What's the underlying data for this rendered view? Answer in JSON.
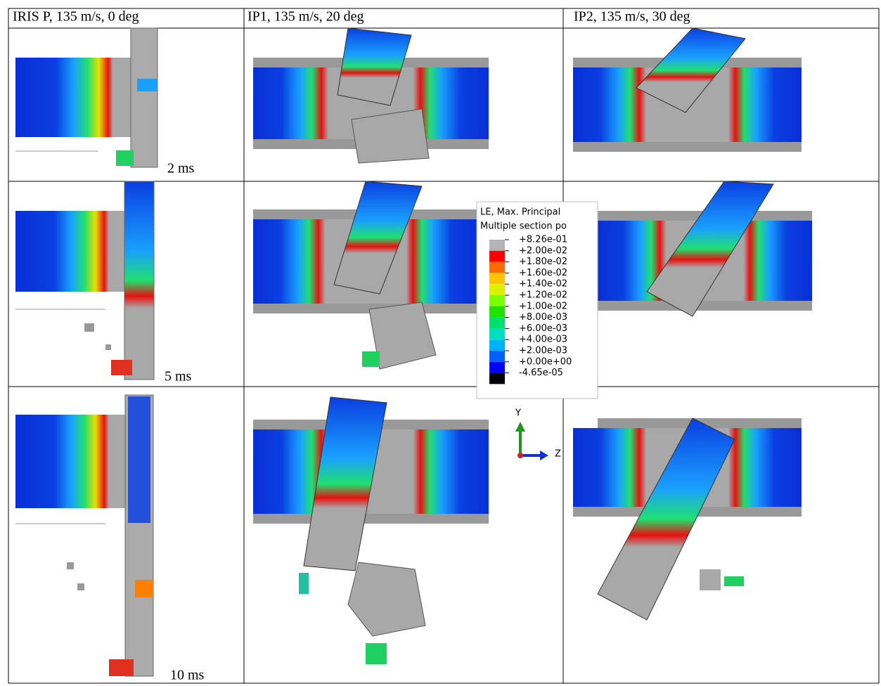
{
  "header": {
    "columns": [
      "IRIS P, 135 m/s, 0 deg",
      "IP1, 135 m/s, 20 deg",
      "IP2, 135 m/s, 30 deg"
    ]
  },
  "time_labels": [
    "2 ms",
    "5 ms",
    "10 ms"
  ],
  "legend": {
    "title": [
      "LE, Max. Principal",
      "Multiple section po"
    ],
    "values": [
      "+8.26e-01",
      "+2.00e-02",
      "+1.80e-02",
      "+1.60e-02",
      "+1.40e-02",
      "+1.20e-02",
      "+1.00e-02",
      "+8.00e-03",
      "+6.00e-03",
      "+4.00e-03",
      "+2.00e-03",
      "+0.00e+00",
      "-4.65e-05"
    ],
    "colors": [
      "#b4b4b4",
      "#ff0000",
      "#ff6a00",
      "#ffc400",
      "#ddf000",
      "#7bff00",
      "#1fe000",
      "#00e070",
      "#00e0c0",
      "#00b0ff",
      "#0060ff",
      "#0000ff",
      "#000000"
    ]
  },
  "triad": {
    "y": "Y",
    "z": "Z"
  }
}
